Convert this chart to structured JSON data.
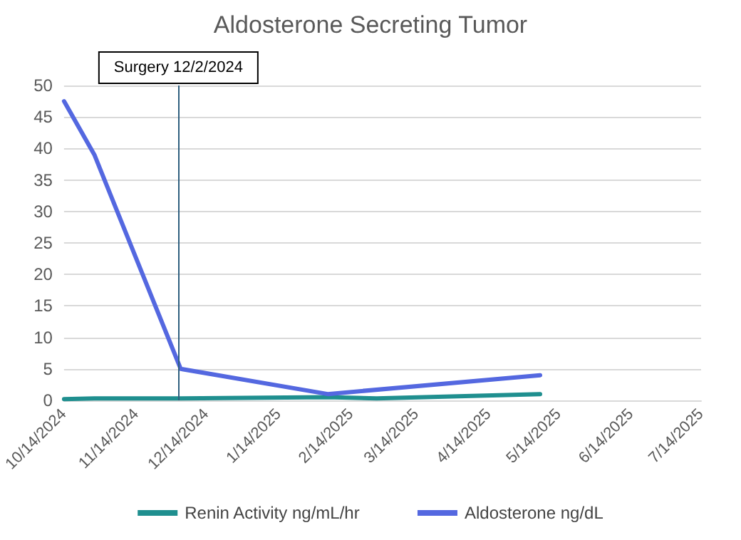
{
  "chart_data": {
    "type": "line",
    "title": "Aldosterone Secreting Tumor",
    "series": [
      {
        "name": "Renin Activity ng/mL/hr",
        "color": "#1f8f8f",
        "x": [
          "2024-10-14",
          "2024-10-27",
          "2024-12-03",
          "2025-02-04",
          "2025-02-25",
          "2025-05-06"
        ],
        "values": [
          0.2,
          0.3,
          0.3,
          0.5,
          0.3,
          1
        ]
      },
      {
        "name": "Aldosterone ng/dL",
        "color": "#5468e0",
        "x": [
          "2024-10-14",
          "2024-10-27",
          "2024-12-03",
          "2025-02-04",
          "2025-05-06"
        ],
        "values": [
          47.5,
          39,
          5,
          1,
          4
        ]
      }
    ],
    "xlim": [
      "2024-10-14",
      "2025-07-14"
    ],
    "xticks": [
      {
        "value": "2024-10-14",
        "label": "10/14/2024"
      },
      {
        "value": "2024-11-14",
        "label": "11/14/2024"
      },
      {
        "value": "2024-12-14",
        "label": "12/14/2024"
      },
      {
        "value": "2025-01-14",
        "label": "1/14/2025"
      },
      {
        "value": "2025-02-14",
        "label": "2/14/2025"
      },
      {
        "value": "2025-03-14",
        "label": "3/14/2025"
      },
      {
        "value": "2025-04-14",
        "label": "4/14/2025"
      },
      {
        "value": "2025-05-14",
        "label": "5/14/2025"
      },
      {
        "value": "2025-06-14",
        "label": "6/14/2025"
      },
      {
        "value": "2025-07-14",
        "label": "7/14/2025"
      }
    ],
    "ylim": [
      0,
      50
    ],
    "yticks": [
      0,
      5,
      10,
      15,
      20,
      25,
      30,
      35,
      40,
      45,
      50
    ],
    "ref_lines": [
      {
        "axis": "x",
        "value": "2024-12-02",
        "label": "Surgery 12/2/2024",
        "color": "#2f5f7f"
      }
    ],
    "grid": "y",
    "legend": "bottom",
    "marker": "none",
    "line_style": "solid"
  }
}
